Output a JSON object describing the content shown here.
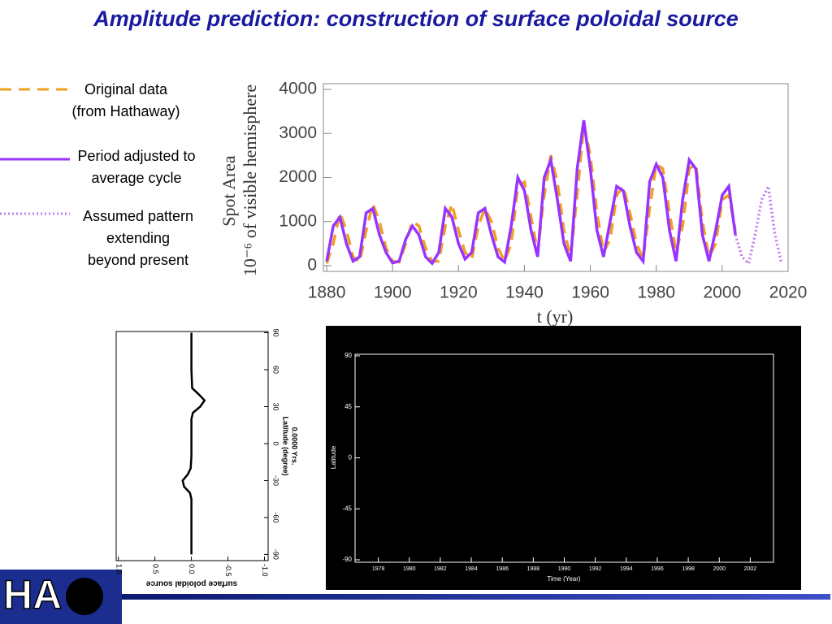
{
  "header": {
    "title": "Amplitude prediction: construction of surface poloidal source"
  },
  "logo": {
    "text": "HA"
  },
  "chart_data": [
    {
      "type": "line",
      "ylabel": [
        "Spot Area",
        "10⁻⁶ of visible hemisphere"
      ],
      "xlabel": "t (yr)",
      "x": [
        1880,
        1882,
        1884,
        1886,
        1888,
        1890,
        1892,
        1894,
        1896,
        1898,
        1900,
        1902,
        1904,
        1906,
        1908,
        1910,
        1912,
        1914,
        1916,
        1918,
        1920,
        1922,
        1924,
        1926,
        1928,
        1930,
        1932,
        1934,
        1936,
        1938,
        1940,
        1942,
        1944,
        1946,
        1948,
        1950,
        1952,
        1954,
        1956,
        1958,
        1960,
        1962,
        1964,
        1966,
        1968,
        1970,
        1972,
        1974,
        1976,
        1978,
        1980,
        1982,
        1984,
        1986,
        1988,
        1990,
        1992,
        1994,
        1996,
        1998,
        2000,
        2002,
        2004,
        2006,
        2008,
        2010,
        2012,
        2014,
        2016,
        2018
      ],
      "series": [
        {
          "name": "Original data\n(from Hathaway)",
          "color": "#f0a020",
          "dash": "dashed",
          "values": [
            50,
            500,
            1200,
            800,
            200,
            80,
            800,
            1400,
            1000,
            400,
            100,
            80,
            500,
            1000,
            900,
            400,
            100,
            100,
            900,
            1400,
            800,
            300,
            150,
            900,
            1300,
            1000,
            400,
            100,
            500,
            1800,
            1900,
            1100,
            300,
            1600,
            2500,
            1900,
            800,
            200,
            1600,
            3200,
            2500,
            1200,
            300,
            600,
            1600,
            1800,
            1200,
            500,
            150,
            1300,
            2300,
            2200,
            1200,
            300,
            900,
            2200,
            2300,
            1000,
            200,
            500,
            1500,
            1600,
            800,
            null,
            null,
            null,
            null,
            null,
            null,
            null
          ]
        },
        {
          "name": "Period adjusted to\naverage cycle",
          "color": "#9933ff",
          "dash": "solid",
          "values": [
            100,
            900,
            1100,
            500,
            100,
            200,
            1200,
            1300,
            700,
            300,
            60,
            100,
            600,
            900,
            700,
            200,
            50,
            300,
            1300,
            1100,
            500,
            150,
            300,
            1200,
            1300,
            700,
            200,
            80,
            900,
            2000,
            1700,
            800,
            200,
            2000,
            2400,
            1500,
            500,
            100,
            2200,
            3300,
            2200,
            800,
            200,
            1000,
            1800,
            1700,
            900,
            300,
            100,
            1900,
            2300,
            2000,
            800,
            100,
            1500,
            2400,
            2200,
            700,
            100,
            800,
            1600,
            1800,
            700,
            null,
            null,
            null,
            null,
            null,
            null,
            null
          ]
        },
        {
          "name": "Assumed pattern\nextending\nbeyond present",
          "color": "#c080f0",
          "dash": "dotted",
          "values": [
            null,
            null,
            null,
            null,
            null,
            null,
            null,
            null,
            null,
            null,
            null,
            null,
            null,
            null,
            null,
            null,
            null,
            null,
            null,
            null,
            null,
            null,
            null,
            null,
            null,
            null,
            null,
            null,
            null,
            null,
            null,
            null,
            null,
            null,
            null,
            null,
            null,
            null,
            null,
            null,
            null,
            null,
            null,
            null,
            null,
            null,
            null,
            null,
            null,
            null,
            null,
            null,
            null,
            null,
            null,
            null,
            null,
            null,
            null,
            null,
            null,
            null,
            700,
            200,
            50,
            700,
            1500,
            1800,
            700,
            50
          ]
        }
      ],
      "xlim": [
        1879,
        2020
      ],
      "xticks": [
        1880,
        1900,
        1920,
        1940,
        1960,
        1980,
        2000,
        2020
      ],
      "ylim": [
        -130,
        4130
      ],
      "yticks": [
        0,
        1000,
        2000,
        3000,
        4000
      ]
    },
    {
      "type": "profile",
      "xlabel": "surface poloidal source",
      "ylabel": [
        "Latitude (degree)",
        "0.0000 Yrs."
      ],
      "x": [
        -90,
        -80,
        -60,
        -45,
        -40,
        -35,
        -30,
        -25,
        -20,
        -10,
        0,
        10,
        20,
        25,
        30,
        35,
        40,
        45,
        60,
        80,
        90
      ],
      "values": [
        0,
        0,
        0,
        0,
        0.02,
        0.1,
        0.12,
        0.05,
        0.01,
        0,
        0,
        0,
        0,
        -0.02,
        -0.12,
        -0.18,
        -0.1,
        -0.01,
        0,
        0,
        0
      ],
      "color": "#000000",
      "xlim": [
        -95,
        91
      ],
      "xticks": [
        -90,
        -60,
        -30,
        0,
        30,
        60,
        90
      ],
      "ylim": [
        1.03,
        -1.05
      ],
      "yticks": [
        {
          "value": 1,
          "label": "1.0"
        },
        0.5,
        {
          "value": 0,
          "label": "0.0"
        },
        -0.5,
        {
          "value": -1,
          "label": "-1.0"
        }
      ]
    },
    {
      "type": "map",
      "xlabel": "Time (Year)",
      "ylabel": "Latitude",
      "xlim": [
        1976.5,
        2003.5
      ],
      "xticks": [
        1978,
        1980,
        1982,
        1984,
        1986,
        1988,
        1990,
        1992,
        1994,
        1996,
        1998,
        2000,
        2002
      ],
      "ylim": [
        -90,
        90
      ],
      "yticks": [
        -90,
        -45,
        0,
        45,
        90
      ]
    }
  ]
}
